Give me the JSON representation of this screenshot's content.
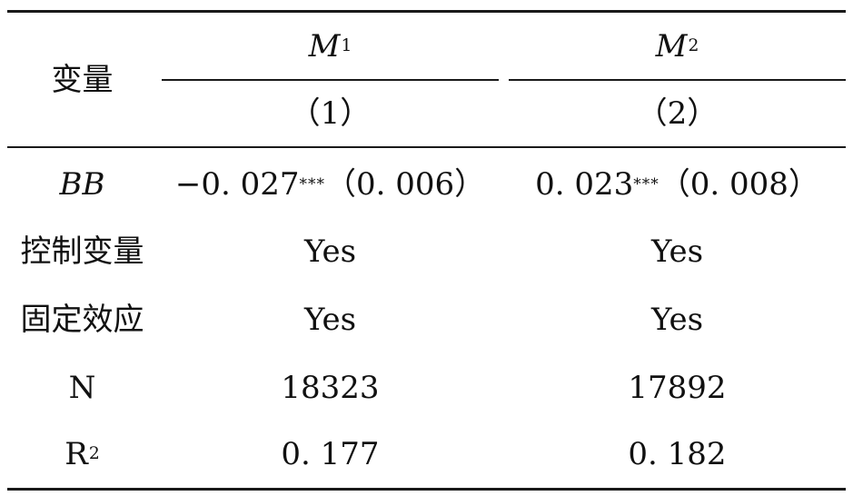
{
  "table": {
    "header": {
      "variable_label": "变量",
      "models": [
        {
          "name": "M",
          "subscript": "1",
          "number": "（1）"
        },
        {
          "name": "M",
          "subscript": "2",
          "number": "（2）"
        }
      ]
    },
    "rows": [
      {
        "label": "BB",
        "col1": {
          "value": "−0. 027",
          "stars": "***",
          "se": "（0. 006）"
        },
        "col2": {
          "value": "0. 023",
          "stars": "***",
          "se": "（0. 008）"
        }
      },
      {
        "label": "控制变量",
        "col1": "Yes",
        "col2": "Yes"
      },
      {
        "label": "固定效应",
        "col1": "Yes",
        "col2": "Yes"
      },
      {
        "label": "N",
        "col1": "18323",
        "col2": "17892"
      },
      {
        "label": "R",
        "label_sup": "2",
        "col1": "0. 177",
        "col2": "0. 182"
      }
    ]
  }
}
